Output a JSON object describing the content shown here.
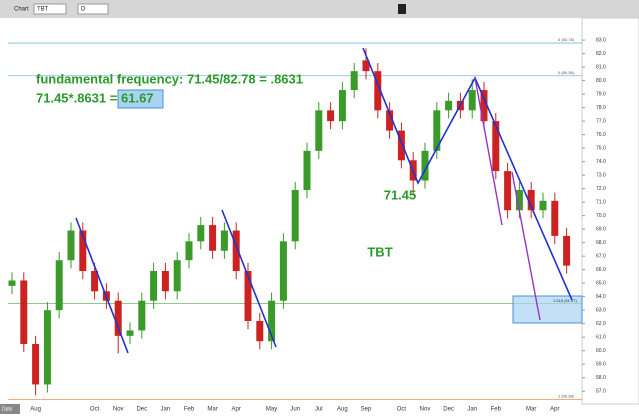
{
  "toolbar": {
    "tab": "Chart",
    "symbol": "TBT",
    "period": "D",
    "corner": "Dpts"
  },
  "chart_data": {
    "type": "candlestick",
    "categories": [
      null,
      null,
      "Aug",
      null,
      null,
      null,
      null,
      "Oct",
      null,
      "Nov",
      null,
      "Dec",
      null,
      "Jan",
      null,
      "Feb",
      null,
      "Mar",
      null,
      "Apr",
      null,
      null,
      "May",
      null,
      "Jun",
      null,
      "Jul",
      null,
      "Aug",
      null,
      "Sep",
      null,
      null,
      "Oct",
      null,
      "Nov",
      null,
      "Dec",
      null,
      "Jan",
      null,
      "Feb",
      null,
      null,
      "Mar",
      null,
      "Apr",
      null
    ],
    "open": [
      64.8,
      65.2,
      60.5,
      57.5,
      63.0,
      66.7,
      68.9,
      65.9,
      64.4,
      63.7,
      61.1,
      61.5,
      63.7,
      65.9,
      64.4,
      66.7,
      68.1,
      69.3,
      67.4,
      68.9,
      65.9,
      62.2,
      60.7,
      63.7,
      68.1,
      71.9,
      74.8,
      77.8,
      77.0,
      79.3,
      81.5,
      80.7,
      77.8,
      76.3,
      74.1,
      72.6,
      74.8,
      77.8,
      78.5,
      77.8,
      79.3,
      77.0,
      73.3,
      70.4,
      71.9,
      70.4,
      71.1,
      68.5
    ],
    "high": [
      65.8,
      65.8,
      61.1,
      63.6,
      67.3,
      69.5,
      69.5,
      66.5,
      65.0,
      64.3,
      62.1,
      64.3,
      66.5,
      66.5,
      67.3,
      68.7,
      69.9,
      69.9,
      69.5,
      69.5,
      66.5,
      62.8,
      64.3,
      68.7,
      72.5,
      75.4,
      78.4,
      78.4,
      79.9,
      81.3,
      82.4,
      81.3,
      78.4,
      76.9,
      74.7,
      75.4,
      78.4,
      79.1,
      79.1,
      80.1,
      79.9,
      77.6,
      73.9,
      72.5,
      72.5,
      71.7,
      71.7,
      69.1
    ],
    "low": [
      64.2,
      59.9,
      56.7,
      56.9,
      62.4,
      66.1,
      65.3,
      63.8,
      63.1,
      59.8,
      60.5,
      60.9,
      63.1,
      63.8,
      63.8,
      66.1,
      67.5,
      66.8,
      66.8,
      65.3,
      61.6,
      60.1,
      60.1,
      63.1,
      67.5,
      71.3,
      74.2,
      76.4,
      76.4,
      78.7,
      80.1,
      77.2,
      75.7,
      73.5,
      71.5,
      72.0,
      74.2,
      77.2,
      77.2,
      77.2,
      76.4,
      72.7,
      69.8,
      69.8,
      69.8,
      69.8,
      67.9,
      65.7
    ],
    "close": [
      65.2,
      60.5,
      57.5,
      63.0,
      66.7,
      68.9,
      65.9,
      64.4,
      63.7,
      61.1,
      61.5,
      63.7,
      65.9,
      64.4,
      66.7,
      68.1,
      69.3,
      67.4,
      68.9,
      65.9,
      62.2,
      60.7,
      63.7,
      68.1,
      71.9,
      74.8,
      77.8,
      77.0,
      79.3,
      80.7,
      80.7,
      77.8,
      76.3,
      74.1,
      72.6,
      74.8,
      77.8,
      78.5,
      77.8,
      79.3,
      77.0,
      73.3,
      70.4,
      71.9,
      70.4,
      71.1,
      68.5,
      66.3
    ],
    "up_color": "#3a9a2a",
    "down_color": "#cc2222",
    "ylim": [
      56.2,
      83.6
    ],
    "yticks": [
      {
        "value": 57,
        "label": "57.0"
      },
      {
        "value": 58,
        "label": "58.0"
      },
      {
        "value": 59,
        "label": "59.0"
      },
      {
        "value": 60,
        "label": "60.0"
      },
      {
        "value": 61,
        "label": "61.0"
      },
      {
        "value": 62,
        "label": "62.0"
      },
      {
        "value": 63,
        "label": "63.0"
      },
      {
        "value": 64,
        "label": "64.0"
      },
      {
        "value": 65,
        "label": "65.0"
      },
      {
        "value": 66,
        "label": "66.0"
      },
      {
        "value": 67,
        "label": "67.0"
      },
      {
        "value": 68,
        "label": "68.0"
      },
      {
        "value": 69,
        "label": "69.0"
      },
      {
        "value": 70,
        "label": "70.0"
      },
      {
        "value": 71,
        "label": "71.0"
      },
      {
        "value": 72,
        "label": "72.0"
      },
      {
        "value": 73,
        "label": "73.0"
      },
      {
        "value": 74,
        "label": "74.0"
      },
      {
        "value": 75,
        "label": "75.0"
      },
      {
        "value": 76,
        "label": "76.0"
      },
      {
        "value": 77,
        "label": "77.0"
      },
      {
        "value": 78,
        "label": "78.0"
      },
      {
        "value": 79,
        "label": "79.0"
      },
      {
        "value": 80,
        "label": "80.0"
      },
      {
        "value": 81,
        "label": "81.0"
      },
      {
        "value": 82,
        "label": "82.0"
      },
      {
        "value": 83,
        "label": "83.0"
      }
    ],
    "levels": [
      {
        "value": 82.78,
        "label": "0 (82.78)",
        "color": "#7ab8e0"
      },
      {
        "value": 80.36,
        "label": "0 (80.36)",
        "color": "#7ab8e0"
      },
      {
        "value": 56.38,
        "label": "1 (56.38)",
        "color": "#f0a070"
      },
      {
        "value": 63.5,
        "color": "#7cc27c"
      }
    ],
    "annotations": {
      "line1": "fundamental frequency: 71.45/82.78 = .8631",
      "line2": "71.45*.8631 = ",
      "result": "61.67",
      "low": "71.45",
      "symbol": "TBT",
      "box": "1.618 (61.67)"
    }
  }
}
